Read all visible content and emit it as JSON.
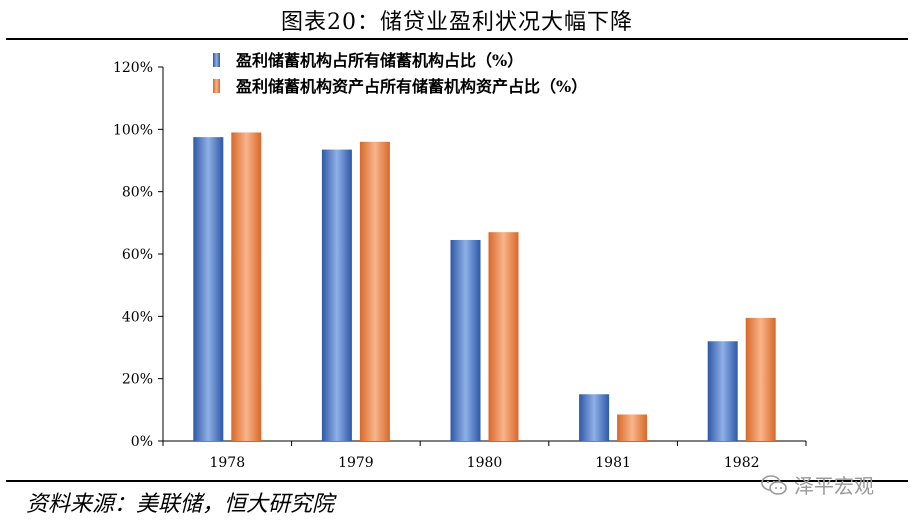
{
  "title": "图表20：储贷业盈利状况大幅下降",
  "source": "资料来源：美联储，恒大研究院",
  "watermark": "泽平宏观",
  "colors": {
    "series1": "#4472C4",
    "series2": "#ED7D31"
  },
  "chart_data": {
    "type": "bar",
    "categories": [
      "1978",
      "1979",
      "1980",
      "1981",
      "1982"
    ],
    "series": [
      {
        "name": "盈利储蓄机构占所有储蓄机构占比（%）",
        "values": [
          97.5,
          93.5,
          64.5,
          15,
          32
        ]
      },
      {
        "name": "盈利储蓄机构资产占所有储蓄机构资产占比（%）",
        "values": [
          99,
          96,
          67,
          8.5,
          39.5
        ]
      }
    ],
    "ylim": [
      0,
      120
    ],
    "yticks": [
      "0%",
      "20%",
      "40%",
      "60%",
      "80%",
      "100%",
      "120%"
    ],
    "legend": "top-left",
    "grid": false
  }
}
